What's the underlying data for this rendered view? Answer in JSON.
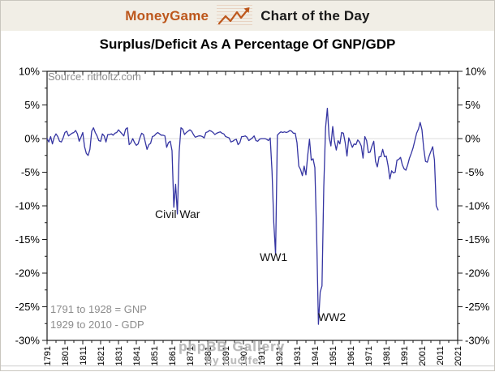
{
  "header": {
    "brand": "MoneyGame",
    "tagline": "Chart of the Day"
  },
  "page_title": "Surplus/Deficit As A Percentage Of GNP/GDP",
  "annotations": {
    "source": "Source: ritholtz.com",
    "civil_war": "Civil War",
    "ww1": "WW1",
    "ww2": "WW2",
    "note_line1": "1791 to 1928 = GNP",
    "note_line2": "1929 to 2010 - GDP"
  },
  "watermark": {
    "line1": "phpBB Gallery",
    "line2": "by Lucifer"
  },
  "colors": {
    "brand_orange": "#bd571c",
    "header_bg": "#f1eee6",
    "line": "#3535a2",
    "grid": "#dcdcdc",
    "axis": "#1a1a1a",
    "muted_text": "#8c8c8c",
    "watermark": "#aeaeae"
  },
  "chart_data": {
    "type": "line",
    "title": "Surplus/Deficit As A Percentage Of GNP/GDP",
    "xlabel": "",
    "ylabel": "",
    "xlim": [
      1791,
      2021
    ],
    "ylim": [
      -30,
      10
    ],
    "grid": "horizontal line at 0% only",
    "legend": "none",
    "axes_mirrored": true,
    "x_start_year": 1791,
    "x_end_year": 2010,
    "x_ticks_major": [
      1791,
      1801,
      1811,
      1821,
      1831,
      1841,
      1851,
      1861,
      1871,
      1881,
      1891,
      1901,
      1911,
      1921,
      1931,
      1941,
      1951,
      1961,
      1971,
      1981,
      1991,
      2001,
      2011,
      2021
    ],
    "x_minor_step": 5,
    "y_ticks": [
      {
        "value": 10,
        "label": "10%"
      },
      {
        "value": 5,
        "label": "5%"
      },
      {
        "value": 0,
        "label": "0%"
      },
      {
        "value": -5,
        "label": "-5%"
      },
      {
        "value": -10,
        "label": "-10%"
      },
      {
        "value": -15,
        "label": "-15%"
      },
      {
        "value": -20,
        "label": "-20%"
      },
      {
        "value": -25,
        "label": "-25%"
      },
      {
        "value": -30,
        "label": "-30%"
      }
    ],
    "y_minor_step": 2.5,
    "series": [
      {
        "name": "US federal surplus/deficit as % of GNP (1791-1928) / GDP (1929-2010)",
        "start_year": 1791,
        "values": [
          0.0,
          -0.5,
          0.3,
          -0.8,
          0.2,
          0.7,
          0.3,
          -0.4,
          -0.5,
          0.1,
          0.9,
          1.1,
          0.4,
          0.6,
          0.8,
          0.9,
          1.2,
          0.7,
          -0.4,
          0.2,
          0.9,
          -1.2,
          -2.2,
          -2.5,
          -1.6,
          1.1,
          1.6,
          0.9,
          0.4,
          -0.3,
          -0.4,
          0.7,
          0.4,
          -0.5,
          0.6,
          0.6,
          0.7,
          0.5,
          0.8,
          0.9,
          1.3,
          1.0,
          0.7,
          0.4,
          1.4,
          1.6,
          -0.9,
          -0.6,
          0.0,
          -0.6,
          -1.0,
          -0.8,
          0.1,
          0.8,
          0.6,
          -0.5,
          -1.6,
          -0.9,
          -0.7,
          0.3,
          0.4,
          0.7,
          0.9,
          0.7,
          0.5,
          0.5,
          0.4,
          -1.3,
          -0.6,
          -0.4,
          -1.8,
          -10.2,
          -6.8,
          -11.2,
          -2.0,
          1.6,
          1.4,
          0.6,
          0.9,
          1.1,
          1.3,
          1.1,
          0.6,
          0.2,
          0.3,
          0.4,
          0.4,
          0.3,
          0.1,
          0.9,
          1.0,
          1.2,
          1.1,
          0.9,
          0.6,
          0.8,
          0.9,
          1.0,
          0.8,
          0.7,
          0.3,
          0.2,
          0.1,
          -0.5,
          -0.4,
          -0.2,
          -0.1,
          -0.9,
          -0.6,
          0.3,
          0.3,
          0.4,
          0.2,
          -0.3,
          -0.1,
          0.1,
          0.4,
          -0.3,
          -0.4,
          -0.1,
          0.0,
          0.0,
          0.0,
          -0.1,
          -0.3,
          0.1,
          -4.8,
          -12.5,
          -17.2,
          0.5,
          0.8,
          1.0,
          0.9,
          1.0,
          0.9,
          1.0,
          1.2,
          1.1,
          0.8,
          0.8,
          -0.6,
          -4.1,
          -4.6,
          -5.5,
          -4.1,
          -5.4,
          -2.5,
          -0.1,
          -3.2,
          -3.0,
          -4.3,
          -14.2,
          -27.6,
          -22.8,
          -21.9,
          -7.2,
          1.6,
          4.5,
          0.2,
          -1.1,
          1.8,
          -0.4,
          -1.7,
          -0.3,
          -0.8,
          0.9,
          0.8,
          -0.6,
          -2.6,
          0.1,
          -0.6,
          -1.3,
          -0.8,
          -0.9,
          -0.2,
          -0.5,
          -1.1,
          -2.9,
          0.3,
          -0.3,
          -2.1,
          -2.0,
          -1.1,
          -0.4,
          -3.4,
          -4.2,
          -2.7,
          -2.7,
          -1.6,
          -2.7,
          -2.6,
          -4.0,
          -6.0,
          -4.8,
          -5.1,
          -5.0,
          -3.2,
          -3.1,
          -2.8,
          -3.9,
          -4.5,
          -4.7,
          -3.9,
          -2.9,
          -2.2,
          -1.4,
          -0.3,
          0.8,
          1.4,
          2.4,
          1.3,
          -1.5,
          -3.4,
          -3.5,
          -2.6,
          -1.9,
          -1.2,
          -3.2,
          -10.0,
          -10.6
        ]
      }
    ]
  }
}
